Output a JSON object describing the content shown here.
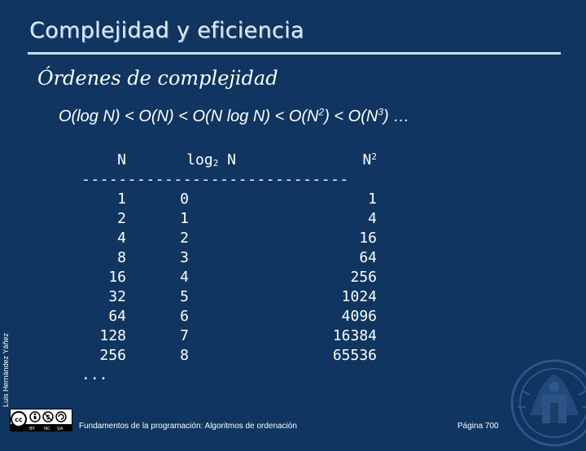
{
  "slide": {
    "title": "Complejidad y eficiencia",
    "subtitle": "Órdenes de complejidad",
    "formula": {
      "p1": "O(log N) < O(N) < O(N log N) < O(N",
      "sup1": "2",
      "p2": ") < O(N",
      "sup2": "3",
      "p3": ") …"
    },
    "vertical_author": "Luis Hernández Yáñez",
    "footer_text": "Fundamentos de la programación: Algoritmos de ordenación",
    "page_number": "Página 700",
    "license_badge": "cc BY NC SA"
  },
  "table": {
    "headers": {
      "n": "N",
      "log_prefix": "log",
      "log_sub": "2",
      "log_suffix": " N",
      "sq_base": "N",
      "sq_sup": "2"
    },
    "separator": "-----------------------------",
    "rows": [
      {
        "n": "1",
        "log": "0",
        "sq": "1"
      },
      {
        "n": "2",
        "log": "1",
        "sq": "4"
      },
      {
        "n": "4",
        "log": "2",
        "sq": "16"
      },
      {
        "n": "8",
        "log": "3",
        "sq": "64"
      },
      {
        "n": "16",
        "log": "4",
        "sq": "256"
      },
      {
        "n": "32",
        "log": "5",
        "sq": "1024"
      },
      {
        "n": "64",
        "log": "6",
        "sq": "4096"
      },
      {
        "n": "128",
        "log": "7",
        "sq": "16384"
      },
      {
        "n": "256",
        "log": "8",
        "sq": "65536"
      }
    ],
    "ellipsis": "..."
  },
  "colors": {
    "background": "#0f3560",
    "title": "#dce8f8",
    "rule": "#c9daf3"
  }
}
